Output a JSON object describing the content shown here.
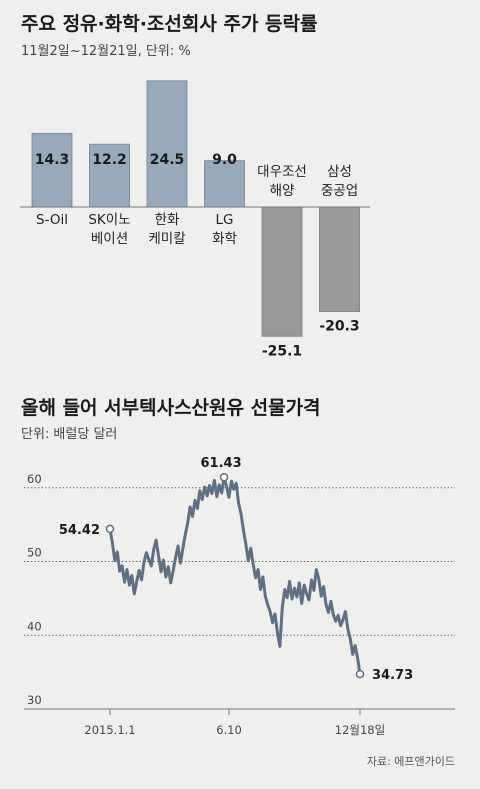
{
  "chart_data": [
    {
      "type": "bar",
      "title": "주요 정유·화학·조선회사 주가 등락률",
      "subtitle": "11월2일~12월21일, 단위: %",
      "categories": [
        [
          "S-Oil"
        ],
        [
          "SK이노",
          "베이션"
        ],
        [
          "한화",
          "케미칼"
        ],
        [
          "LG",
          "화학"
        ],
        [
          "대우조선",
          "해양"
        ],
        [
          "삼성",
          "중공업"
        ]
      ],
      "values": [
        14.3,
        12.2,
        24.5,
        9.0,
        -25.1,
        -20.3
      ],
      "value_labels": [
        "14.3",
        "12.2",
        "24.5",
        "9.0",
        "-25.1",
        "-20.3"
      ],
      "colors": {
        "positive": "#97a9bb",
        "negative": "#999999"
      }
    },
    {
      "type": "line",
      "title": "올해 들어 서부텍사스산원유 선물가격",
      "subtitle": "단위: 배럴당 달러",
      "ylim": [
        30,
        62
      ],
      "yticks": [
        30,
        40,
        50,
        60
      ],
      "xticks": [
        "2015.1.1",
        "6.10",
        "12월18일"
      ],
      "series": [
        {
          "values": [
            54.42,
            52.5,
            50.1,
            51.3,
            48.7,
            49.4,
            47.2,
            48.9,
            46.8,
            48.1,
            45.6,
            47.3,
            48.8,
            47.5,
            49.9,
            51.2,
            50.3,
            49.4,
            51.6,
            52.9,
            50.8,
            48.6,
            50.2,
            47.9,
            49.3,
            47.1,
            48.7,
            50.5,
            52.1,
            49.8,
            51.7,
            53.6,
            55.2,
            57.4,
            56.1,
            58.3,
            57.2,
            59.6,
            58.4,
            60.1,
            58.9,
            60.3,
            59.2,
            61.0,
            58.8,
            60.4,
            59.3,
            61.43,
            60.2,
            58.7,
            60.9,
            59.8,
            60.6,
            57.9,
            56.4,
            54.2,
            52.3,
            50.1,
            51.8,
            49.6,
            47.8,
            48.9,
            46.2,
            47.9,
            45.3,
            44.1,
            43.2,
            41.7,
            42.9,
            40.3,
            38.5,
            43.8,
            46.2,
            45.1,
            47.3,
            44.9,
            46.4,
            45.2,
            47.1,
            44.3,
            46.8,
            45.6,
            44.8,
            47.5,
            46.1,
            48.9,
            47.7,
            45.3,
            46.6,
            44.2,
            43.1,
            44.6,
            42.8,
            41.9,
            42.7,
            41.3,
            42.1,
            43.2,
            40.8,
            39.5,
            37.4,
            38.6,
            36.9,
            34.73
          ],
          "color": "#607083"
        }
      ],
      "annotations": [
        "54.42",
        "61.43",
        "34.73"
      ],
      "source": "자료: 에프앤가이드"
    }
  ]
}
